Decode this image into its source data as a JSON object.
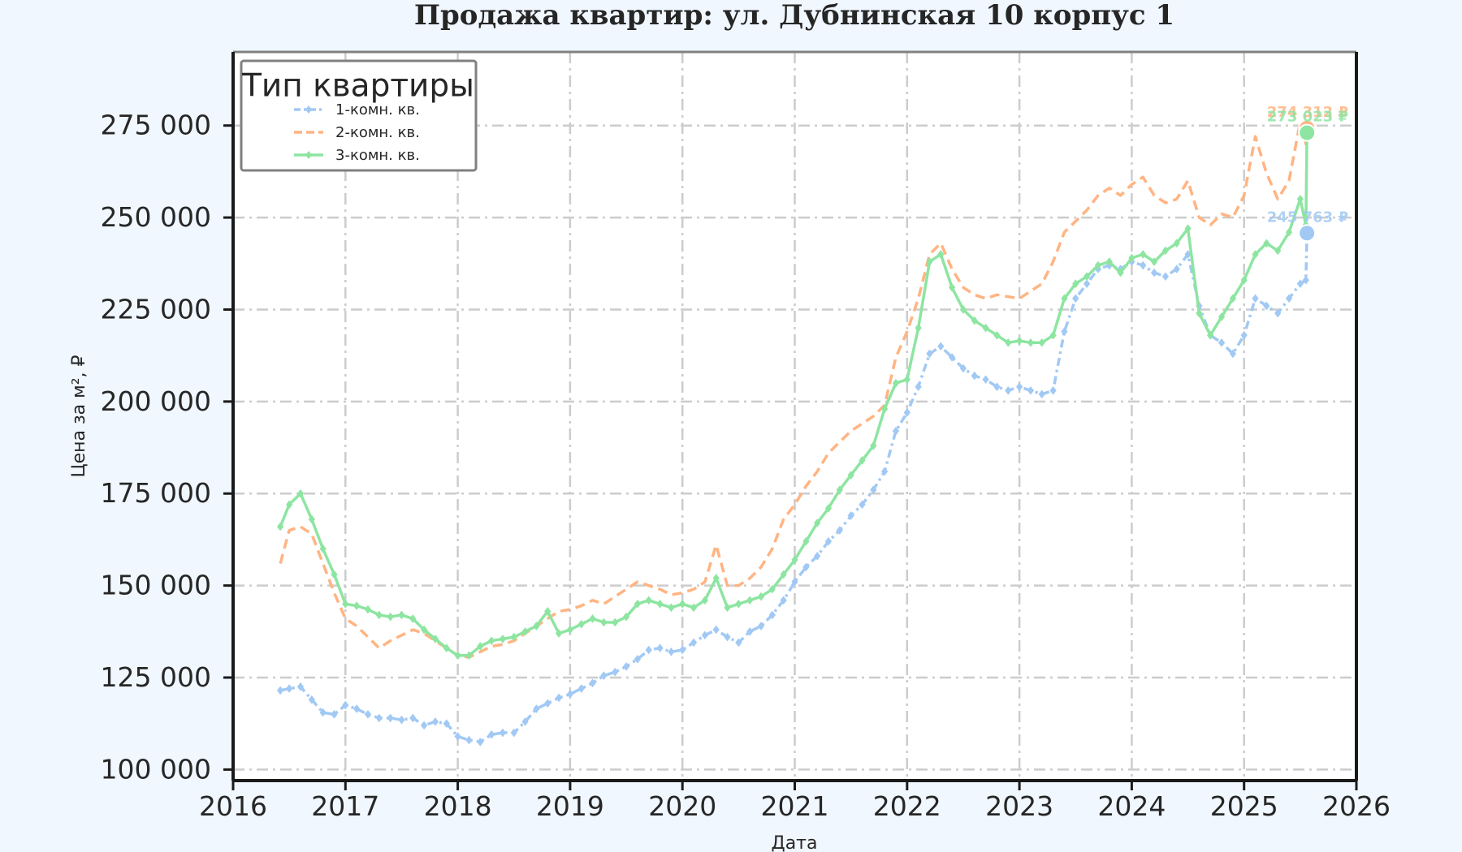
{
  "chart_data": {
    "type": "line",
    "title": "Продажа квартир: ул. Дубнинская 10 корпус 1",
    "xlabel": "Дата",
    "ylabel": "Цена за м², ₽",
    "xlim": [
      2016,
      2026
    ],
    "ylim": [
      97000,
      295000
    ],
    "x_ticks": [
      "2016",
      "2017",
      "2018",
      "2019",
      "2020",
      "2021",
      "2022",
      "2023",
      "2024",
      "2025",
      "2026"
    ],
    "y_ticks": [
      "100 000",
      "125 000",
      "150 000",
      "175 000",
      "200 000",
      "225 000",
      "250 000",
      "275 000"
    ],
    "y_tick_values": [
      100000,
      125000,
      150000,
      175000,
      200000,
      225000,
      250000,
      275000
    ],
    "grid": true,
    "legend": {
      "title": "Тип квартиры",
      "placement": "top-left"
    },
    "series": [
      {
        "name": "1-комн. кв.",
        "color": "#a1c9f4",
        "style": "dash-dot",
        "marker": "diamond",
        "end_label": "245 763 ₽",
        "end_value": 245763,
        "points": [
          [
            2016.42,
            121500
          ],
          [
            2016.5,
            122000
          ],
          [
            2016.6,
            122500
          ],
          [
            2016.7,
            119000
          ],
          [
            2016.8,
            115500
          ],
          [
            2016.9,
            115000
          ],
          [
            2017.0,
            117500
          ],
          [
            2017.1,
            116500
          ],
          [
            2017.2,
            115000
          ],
          [
            2017.3,
            114000
          ],
          [
            2017.4,
            114000
          ],
          [
            2017.5,
            113500
          ],
          [
            2017.6,
            114000
          ],
          [
            2017.7,
            112000
          ],
          [
            2017.8,
            113000
          ],
          [
            2017.9,
            112500
          ],
          [
            2018.0,
            109000
          ],
          [
            2018.1,
            108000
          ],
          [
            2018.2,
            107500
          ],
          [
            2018.3,
            109500
          ],
          [
            2018.4,
            110000
          ],
          [
            2018.5,
            110000
          ],
          [
            2018.6,
            113000
          ],
          [
            2018.7,
            116500
          ],
          [
            2018.8,
            118000
          ],
          [
            2018.9,
            119500
          ],
          [
            2019.0,
            120500
          ],
          [
            2019.1,
            122000
          ],
          [
            2019.2,
            123500
          ],
          [
            2019.3,
            125500
          ],
          [
            2019.4,
            126500
          ],
          [
            2019.5,
            128000
          ],
          [
            2019.6,
            130000
          ],
          [
            2019.7,
            132500
          ],
          [
            2019.8,
            133000
          ],
          [
            2019.9,
            132000
          ],
          [
            2020.0,
            132500
          ],
          [
            2020.1,
            134500
          ],
          [
            2020.2,
            136500
          ],
          [
            2020.3,
            138000
          ],
          [
            2020.4,
            136000
          ],
          [
            2020.5,
            134500
          ],
          [
            2020.6,
            137500
          ],
          [
            2020.7,
            139000
          ],
          [
            2020.8,
            142000
          ],
          [
            2020.9,
            146000
          ],
          [
            2021.0,
            151000
          ],
          [
            2021.1,
            155000
          ],
          [
            2021.2,
            158000
          ],
          [
            2021.3,
            162000
          ],
          [
            2021.4,
            165000
          ],
          [
            2021.5,
            169000
          ],
          [
            2021.6,
            172000
          ],
          [
            2021.7,
            176000
          ],
          [
            2021.8,
            181000
          ],
          [
            2021.9,
            192000
          ],
          [
            2022.0,
            197000
          ],
          [
            2022.1,
            204000
          ],
          [
            2022.2,
            213000
          ],
          [
            2022.3,
            215000
          ],
          [
            2022.4,
            212000
          ],
          [
            2022.5,
            209000
          ],
          [
            2022.6,
            207000
          ],
          [
            2022.7,
            206000
          ],
          [
            2022.8,
            204000
          ],
          [
            2022.9,
            203000
          ],
          [
            2023.0,
            204000
          ],
          [
            2023.1,
            203000
          ],
          [
            2023.2,
            202000
          ],
          [
            2023.3,
            203000
          ],
          [
            2023.4,
            219000
          ],
          [
            2023.5,
            228000
          ],
          [
            2023.6,
            232000
          ],
          [
            2023.7,
            236000
          ],
          [
            2023.8,
            237000
          ],
          [
            2023.9,
            236000
          ],
          [
            2024.0,
            238000
          ],
          [
            2024.1,
            237000
          ],
          [
            2024.2,
            235000
          ],
          [
            2024.3,
            234000
          ],
          [
            2024.4,
            236000
          ],
          [
            2024.5,
            240000
          ],
          [
            2024.6,
            226000
          ],
          [
            2024.7,
            218000
          ],
          [
            2024.8,
            216000
          ],
          [
            2024.9,
            213000
          ],
          [
            2025.0,
            218000
          ],
          [
            2025.1,
            228000
          ],
          [
            2025.2,
            226000
          ],
          [
            2025.3,
            224000
          ],
          [
            2025.4,
            228000
          ],
          [
            2025.5,
            232000
          ],
          [
            2025.55,
            233000
          ],
          [
            2025.56,
            245763
          ]
        ]
      },
      {
        "name": "2-комн. кв.",
        "color": "#ffb482",
        "style": "dashed",
        "marker": "none",
        "end_label": "274 312 ₽",
        "end_value": 274312,
        "points": [
          [
            2016.42,
            156000
          ],
          [
            2016.5,
            165000
          ],
          [
            2016.6,
            166000
          ],
          [
            2016.7,
            164000
          ],
          [
            2016.8,
            156000
          ],
          [
            2016.9,
            148000
          ],
          [
            2017.0,
            141000
          ],
          [
            2017.1,
            139000
          ],
          [
            2017.2,
            136000
          ],
          [
            2017.3,
            133000
          ],
          [
            2017.4,
            135000
          ],
          [
            2017.5,
            136500
          ],
          [
            2017.6,
            138000
          ],
          [
            2017.7,
            137000
          ],
          [
            2017.8,
            135000
          ],
          [
            2017.9,
            133000
          ],
          [
            2018.0,
            131000
          ],
          [
            2018.1,
            130500
          ],
          [
            2018.2,
            132000
          ],
          [
            2018.3,
            133500
          ],
          [
            2018.4,
            134000
          ],
          [
            2018.5,
            135000
          ],
          [
            2018.6,
            137000
          ],
          [
            2018.7,
            139000
          ],
          [
            2018.8,
            141000
          ],
          [
            2018.9,
            143000
          ],
          [
            2019.0,
            143500
          ],
          [
            2019.1,
            144500
          ],
          [
            2019.2,
            146000
          ],
          [
            2019.3,
            145000
          ],
          [
            2019.4,
            147000
          ],
          [
            2019.5,
            149000
          ],
          [
            2019.6,
            151000
          ],
          [
            2019.7,
            150000
          ],
          [
            2019.8,
            149000
          ],
          [
            2019.9,
            147500
          ],
          [
            2020.0,
            148000
          ],
          [
            2020.1,
            149000
          ],
          [
            2020.2,
            151000
          ],
          [
            2020.3,
            161000
          ],
          [
            2020.4,
            150000
          ],
          [
            2020.5,
            150000
          ],
          [
            2020.6,
            152000
          ],
          [
            2020.7,
            155000
          ],
          [
            2020.8,
            160000
          ],
          [
            2020.9,
            168000
          ],
          [
            2021.0,
            172000
          ],
          [
            2021.1,
            177000
          ],
          [
            2021.2,
            181000
          ],
          [
            2021.3,
            186000
          ],
          [
            2021.4,
            189000
          ],
          [
            2021.5,
            192000
          ],
          [
            2021.6,
            194000
          ],
          [
            2021.7,
            196000
          ],
          [
            2021.8,
            199000
          ],
          [
            2021.9,
            212000
          ],
          [
            2022.0,
            219000
          ],
          [
            2022.1,
            228000
          ],
          [
            2022.2,
            240000
          ],
          [
            2022.3,
            243000
          ],
          [
            2022.4,
            236000
          ],
          [
            2022.5,
            231000
          ],
          [
            2022.6,
            229000
          ],
          [
            2022.7,
            228000
          ],
          [
            2022.8,
            229000
          ],
          [
            2022.9,
            228500
          ],
          [
            2023.0,
            228000
          ],
          [
            2023.1,
            230000
          ],
          [
            2023.2,
            232000
          ],
          [
            2023.3,
            238000
          ],
          [
            2023.4,
            246000
          ],
          [
            2023.5,
            249000
          ],
          [
            2023.6,
            252000
          ],
          [
            2023.7,
            256000
          ],
          [
            2023.8,
            258000
          ],
          [
            2023.9,
            256000
          ],
          [
            2024.0,
            259000
          ],
          [
            2024.1,
            261000
          ],
          [
            2024.2,
            256000
          ],
          [
            2024.3,
            254000
          ],
          [
            2024.4,
            255000
          ],
          [
            2024.5,
            260000
          ],
          [
            2024.6,
            250000
          ],
          [
            2024.7,
            248000
          ],
          [
            2024.8,
            251000
          ],
          [
            2024.9,
            250000
          ],
          [
            2025.0,
            256000
          ],
          [
            2025.1,
            272000
          ],
          [
            2025.2,
            262000
          ],
          [
            2025.3,
            255000
          ],
          [
            2025.4,
            260000
          ],
          [
            2025.5,
            276000
          ],
          [
            2025.55,
            270000
          ],
          [
            2025.56,
            274312
          ]
        ]
      },
      {
        "name": "3-комн. кв.",
        "color": "#8de5a1",
        "style": "solid",
        "marker": "diamond",
        "end_label": "273 023 ₽",
        "end_value": 273023,
        "points": [
          [
            2016.42,
            166000
          ],
          [
            2016.5,
            172000
          ],
          [
            2016.6,
            175000
          ],
          [
            2016.7,
            168000
          ],
          [
            2016.8,
            160000
          ],
          [
            2016.9,
            153000
          ],
          [
            2017.0,
            145000
          ],
          [
            2017.1,
            144500
          ],
          [
            2017.2,
            143500
          ],
          [
            2017.3,
            142000
          ],
          [
            2017.4,
            141500
          ],
          [
            2017.5,
            142000
          ],
          [
            2017.6,
            141000
          ],
          [
            2017.7,
            138000
          ],
          [
            2017.8,
            135500
          ],
          [
            2017.9,
            133000
          ],
          [
            2018.0,
            131000
          ],
          [
            2018.1,
            131000
          ],
          [
            2018.2,
            133500
          ],
          [
            2018.3,
            135000
          ],
          [
            2018.4,
            135500
          ],
          [
            2018.5,
            136000
          ],
          [
            2018.6,
            137500
          ],
          [
            2018.7,
            139000
          ],
          [
            2018.8,
            143000
          ],
          [
            2018.9,
            137000
          ],
          [
            2019.0,
            138000
          ],
          [
            2019.1,
            139500
          ],
          [
            2019.2,
            141000
          ],
          [
            2019.3,
            140000
          ],
          [
            2019.4,
            140000
          ],
          [
            2019.5,
            141500
          ],
          [
            2019.6,
            145000
          ],
          [
            2019.7,
            146000
          ],
          [
            2019.8,
            145000
          ],
          [
            2019.9,
            144000
          ],
          [
            2020.0,
            145000
          ],
          [
            2020.1,
            144000
          ],
          [
            2020.2,
            146000
          ],
          [
            2020.3,
            152000
          ],
          [
            2020.4,
            144000
          ],
          [
            2020.5,
            145000
          ],
          [
            2020.6,
            146000
          ],
          [
            2020.7,
            147000
          ],
          [
            2020.8,
            149000
          ],
          [
            2020.9,
            153000
          ],
          [
            2021.0,
            157000
          ],
          [
            2021.1,
            162000
          ],
          [
            2021.2,
            167000
          ],
          [
            2021.3,
            171000
          ],
          [
            2021.4,
            176000
          ],
          [
            2021.5,
            180000
          ],
          [
            2021.6,
            184000
          ],
          [
            2021.7,
            188000
          ],
          [
            2021.8,
            198000
          ],
          [
            2021.9,
            205000
          ],
          [
            2022.0,
            206000
          ],
          [
            2022.1,
            220000
          ],
          [
            2022.2,
            238000
          ],
          [
            2022.3,
            240000
          ],
          [
            2022.4,
            231000
          ],
          [
            2022.5,
            225000
          ],
          [
            2022.6,
            222000
          ],
          [
            2022.7,
            220000
          ],
          [
            2022.8,
            218000
          ],
          [
            2022.9,
            216000
          ],
          [
            2023.0,
            216500
          ],
          [
            2023.1,
            216000
          ],
          [
            2023.2,
            216000
          ],
          [
            2023.3,
            218000
          ],
          [
            2023.4,
            228000
          ],
          [
            2023.5,
            232000
          ],
          [
            2023.6,
            234000
          ],
          [
            2023.7,
            237000
          ],
          [
            2023.8,
            238000
          ],
          [
            2023.9,
            235000
          ],
          [
            2024.0,
            239000
          ],
          [
            2024.1,
            240000
          ],
          [
            2024.2,
            238000
          ],
          [
            2024.3,
            241000
          ],
          [
            2024.4,
            243000
          ],
          [
            2024.5,
            247000
          ],
          [
            2024.6,
            224000
          ],
          [
            2024.7,
            218000
          ],
          [
            2024.8,
            223000
          ],
          [
            2024.9,
            228000
          ],
          [
            2025.0,
            233000
          ],
          [
            2025.1,
            240000
          ],
          [
            2025.2,
            243000
          ],
          [
            2025.3,
            241000
          ],
          [
            2025.4,
            246000
          ],
          [
            2025.5,
            255000
          ],
          [
            2025.55,
            248000
          ],
          [
            2025.56,
            273023
          ]
        ]
      }
    ]
  }
}
